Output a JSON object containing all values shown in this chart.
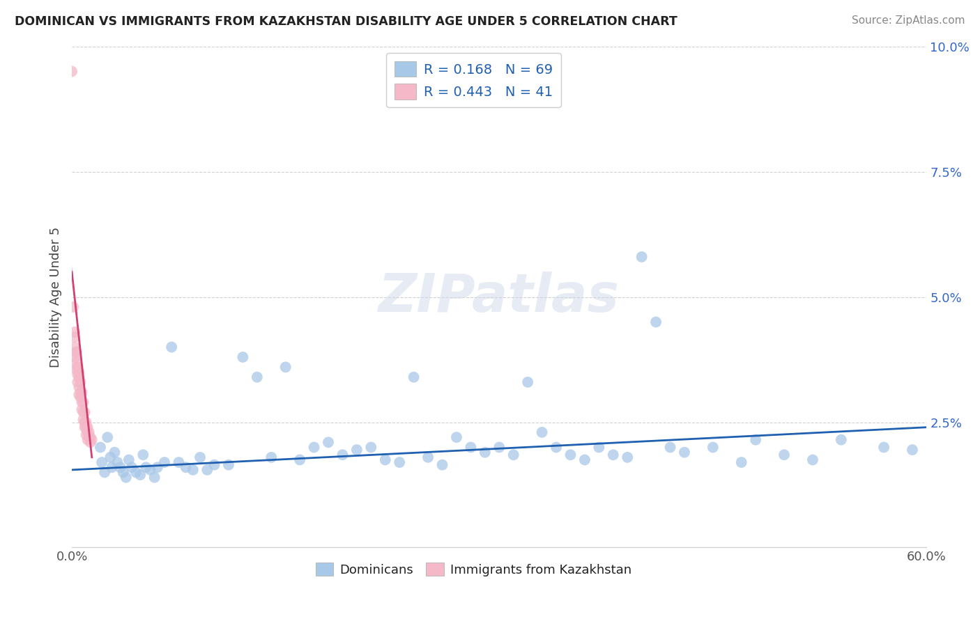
{
  "title": "DOMINICAN VS IMMIGRANTS FROM KAZAKHSTAN DISABILITY AGE UNDER 5 CORRELATION CHART",
  "source": "Source: ZipAtlas.com",
  "ylabel": "Disability Age Under 5",
  "xlim": [
    0.0,
    0.6
  ],
  "ylim": [
    0.0,
    0.1
  ],
  "yticks": [
    0.0,
    0.025,
    0.05,
    0.075,
    0.1
  ],
  "ytick_labels": [
    "",
    "2.5%",
    "5.0%",
    "7.5%",
    "10.0%"
  ],
  "xticks": [
    0.0,
    0.1,
    0.2,
    0.3,
    0.4,
    0.5,
    0.6
  ],
  "xtick_labels": [
    "0.0%",
    "",
    "",
    "",
    "",
    "",
    "60.0%"
  ],
  "blue_color": "#a8c8e8",
  "pink_color": "#f4b8c8",
  "blue_line_color": "#2060b0",
  "pink_line_color": "#d04070",
  "R_blue": 0.168,
  "N_blue": 69,
  "R_pink": 0.443,
  "N_pink": 41,
  "blue_scatter_x": [
    0.02,
    0.021,
    0.023,
    0.025,
    0.027,
    0.028,
    0.03,
    0.032,
    0.034,
    0.036,
    0.038,
    0.04,
    0.042,
    0.045,
    0.048,
    0.05,
    0.052,
    0.055,
    0.058,
    0.06,
    0.065,
    0.07,
    0.075,
    0.08,
    0.085,
    0.09,
    0.095,
    0.1,
    0.11,
    0.12,
    0.13,
    0.14,
    0.15,
    0.16,
    0.17,
    0.18,
    0.19,
    0.2,
    0.21,
    0.22,
    0.23,
    0.24,
    0.25,
    0.26,
    0.27,
    0.28,
    0.29,
    0.3,
    0.31,
    0.32,
    0.33,
    0.34,
    0.35,
    0.36,
    0.37,
    0.38,
    0.39,
    0.4,
    0.41,
    0.42,
    0.43,
    0.45,
    0.47,
    0.48,
    0.5,
    0.52,
    0.54,
    0.57,
    0.59
  ],
  "blue_scatter_y": [
    0.02,
    0.017,
    0.015,
    0.022,
    0.018,
    0.016,
    0.019,
    0.017,
    0.016,
    0.015,
    0.014,
    0.0175,
    0.016,
    0.015,
    0.0145,
    0.0185,
    0.016,
    0.0155,
    0.014,
    0.016,
    0.017,
    0.04,
    0.017,
    0.016,
    0.0155,
    0.018,
    0.0155,
    0.0165,
    0.0165,
    0.038,
    0.034,
    0.018,
    0.036,
    0.0175,
    0.02,
    0.021,
    0.0185,
    0.0195,
    0.02,
    0.0175,
    0.017,
    0.034,
    0.018,
    0.0165,
    0.022,
    0.02,
    0.019,
    0.02,
    0.0185,
    0.033,
    0.023,
    0.02,
    0.0185,
    0.0175,
    0.02,
    0.0185,
    0.018,
    0.058,
    0.045,
    0.02,
    0.019,
    0.02,
    0.017,
    0.0215,
    0.0185,
    0.0175,
    0.0215,
    0.02,
    0.0195
  ],
  "pink_scatter_x": [
    0.0,
    0.001,
    0.002,
    0.003,
    0.004,
    0.005,
    0.006,
    0.007,
    0.008,
    0.009,
    0.01,
    0.011,
    0.012,
    0.013,
    0.014,
    0.002,
    0.003,
    0.004,
    0.005,
    0.006,
    0.007,
    0.008,
    0.009,
    0.01,
    0.011,
    0.012,
    0.013,
    0.002,
    0.003,
    0.004,
    0.005,
    0.006,
    0.007,
    0.008,
    0.009,
    0.01,
    0.011,
    0.002,
    0.003,
    0.004,
    0.005
  ],
  "pink_scatter_y": [
    0.095,
    0.048,
    0.042,
    0.039,
    0.036,
    0.035,
    0.033,
    0.031,
    0.029,
    0.027,
    0.025,
    0.024,
    0.023,
    0.022,
    0.0215,
    0.043,
    0.039,
    0.036,
    0.034,
    0.031,
    0.029,
    0.027,
    0.025,
    0.024,
    0.023,
    0.022,
    0.021,
    0.04,
    0.037,
    0.0345,
    0.032,
    0.03,
    0.0275,
    0.0255,
    0.024,
    0.0225,
    0.0215,
    0.038,
    0.0355,
    0.033,
    0.0305
  ],
  "pink_trend_x0": 0.0,
  "pink_trend_y0": 0.055,
  "pink_trend_x1": 0.014,
  "pink_trend_y1": 0.018,
  "blue_trend_x0": 0.0,
  "blue_trend_y0": 0.0155,
  "blue_trend_x1": 0.6,
  "blue_trend_y1": 0.024,
  "watermark": "ZIPatlas",
  "legend_label_blue": "Dominicans",
  "legend_label_pink": "Immigrants from Kazakhstan"
}
